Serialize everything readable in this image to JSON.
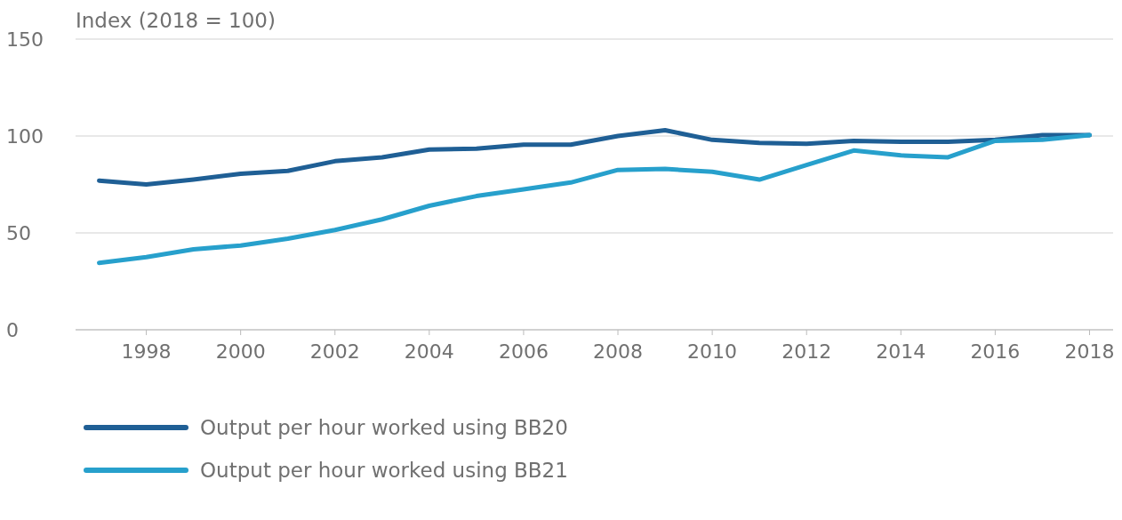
{
  "chart_data": {
    "type": "line",
    "ylabel": "Index (2018 = 100)",
    "x": [
      1997,
      1998,
      1999,
      2000,
      2001,
      2002,
      2003,
      2004,
      2005,
      2006,
      2007,
      2008,
      2009,
      2010,
      2011,
      2012,
      2013,
      2014,
      2015,
      2016,
      2017,
      2018
    ],
    "series": [
      {
        "name": "Output per hour worked using BB20",
        "color": "#1f5f95",
        "values": [
          77,
          75,
          77.5,
          80.5,
          82,
          87,
          89,
          93,
          93.5,
          95.5,
          95.5,
          100,
          103,
          98,
          96.5,
          96,
          97.5,
          97,
          97,
          98,
          100.5,
          100.5
        ]
      },
      {
        "name": "Output per hour worked using BB21",
        "color": "#27a0cc",
        "values": [
          34.5,
          37.5,
          41.5,
          43.5,
          47,
          51.5,
          57,
          64,
          69,
          72.5,
          76,
          82.5,
          83,
          81.5,
          77.5,
          85,
          92.5,
          90,
          89,
          97.5,
          98,
          100.5
        ]
      }
    ],
    "xlim": [
      1996.5,
      2018.5
    ],
    "xticks": [
      1998,
      2000,
      2002,
      2004,
      2006,
      2008,
      2010,
      2012,
      2014,
      2016,
      2018
    ],
    "ylim": [
      0,
      150
    ],
    "yticks": [
      0,
      50,
      100,
      150
    ],
    "grid": "y",
    "legend": "bottom",
    "marker": "none",
    "line_style": "solid"
  }
}
